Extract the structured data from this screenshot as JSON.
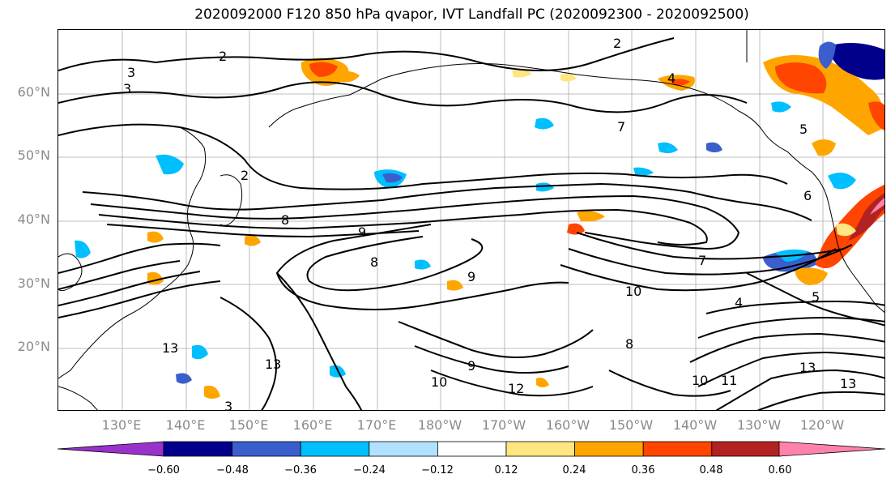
{
  "title": "2020092000 F120 850 hPa qvapor, IVT Landfall PC (2020092300 - 2020092500)",
  "lat_labels": [
    "60°N",
    "50°N",
    "40°N",
    "30°N",
    "20°N"
  ],
  "lon_labels": [
    "130°E",
    "140°E",
    "150°E",
    "160°E",
    "170°E",
    "180°W",
    "170°W",
    "160°W",
    "150°W",
    "140°W",
    "130°W",
    "120°W"
  ],
  "contour_labels": [
    "2",
    "3",
    "3",
    "2",
    "2",
    "4",
    "5",
    "6",
    "8",
    "9",
    "7",
    "8",
    "9",
    "10",
    "4",
    "5",
    "7",
    "8",
    "13",
    "13",
    "10",
    "9",
    "12",
    "10",
    "11",
    "13",
    "13",
    "3"
  ],
  "colorbar": {
    "ticks": [
      "−0.60",
      "−0.48",
      "−0.36",
      "−0.24",
      "−0.12",
      "0.12",
      "0.24",
      "0.36",
      "0.48",
      "0.60"
    ],
    "colors": [
      "#9932CC",
      "#00008B",
      "#3A5FCD",
      "#00BFFF",
      "#B0E2FF",
      "#FFFFFF",
      "#FFE680",
      "#FFA500",
      "#FF4500",
      "#B22222",
      "#FF82AB"
    ]
  }
}
